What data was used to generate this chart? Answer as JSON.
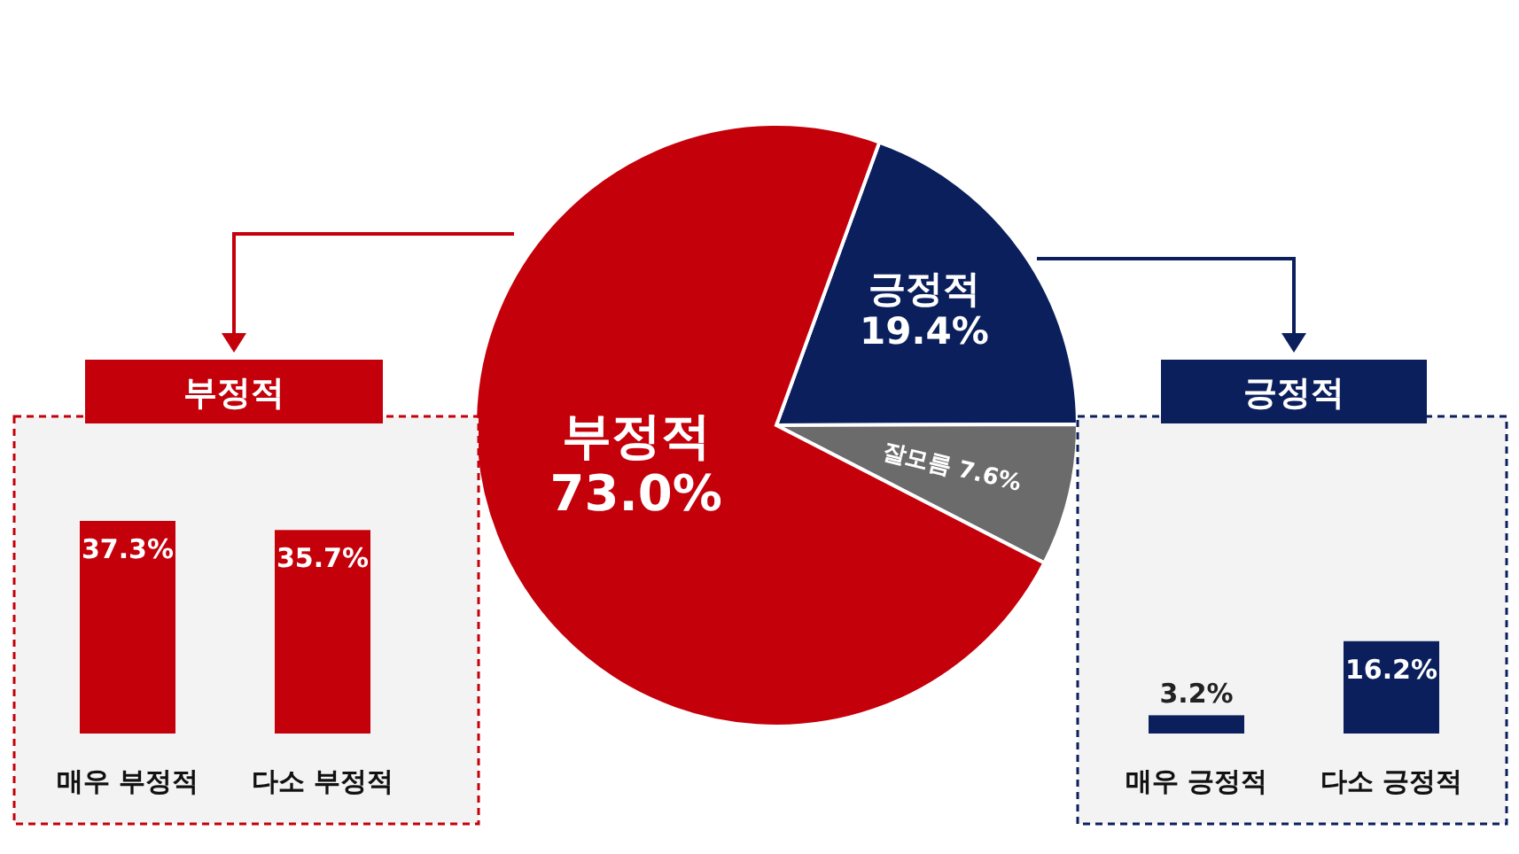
{
  "chart_data": [
    {
      "type": "pie",
      "categories": [
        "긍정적",
        "잘모름",
        "부정적"
      ],
      "values": [
        19.4,
        7.6,
        73.0
      ],
      "value_labels": [
        "19.4%",
        "7.6%",
        "73.0%"
      ],
      "colors": [
        "#0b1f5c",
        "#6b6b6b",
        "#c4000b"
      ]
    },
    {
      "type": "bar",
      "title": "부정적",
      "categories": [
        "매우 부정적",
        "다소 부정적"
      ],
      "values": [
        37.3,
        35.7
      ],
      "value_labels": [
        "37.3%",
        "35.7%"
      ],
      "color": "#c4000b"
    },
    {
      "type": "bar",
      "title": "긍정적",
      "categories": [
        "매우 긍정적",
        "다소 긍정적"
      ],
      "values": [
        3.2,
        16.2
      ],
      "value_labels": [
        "3.2%",
        "16.2%"
      ],
      "color": "#0b1f5c"
    }
  ]
}
